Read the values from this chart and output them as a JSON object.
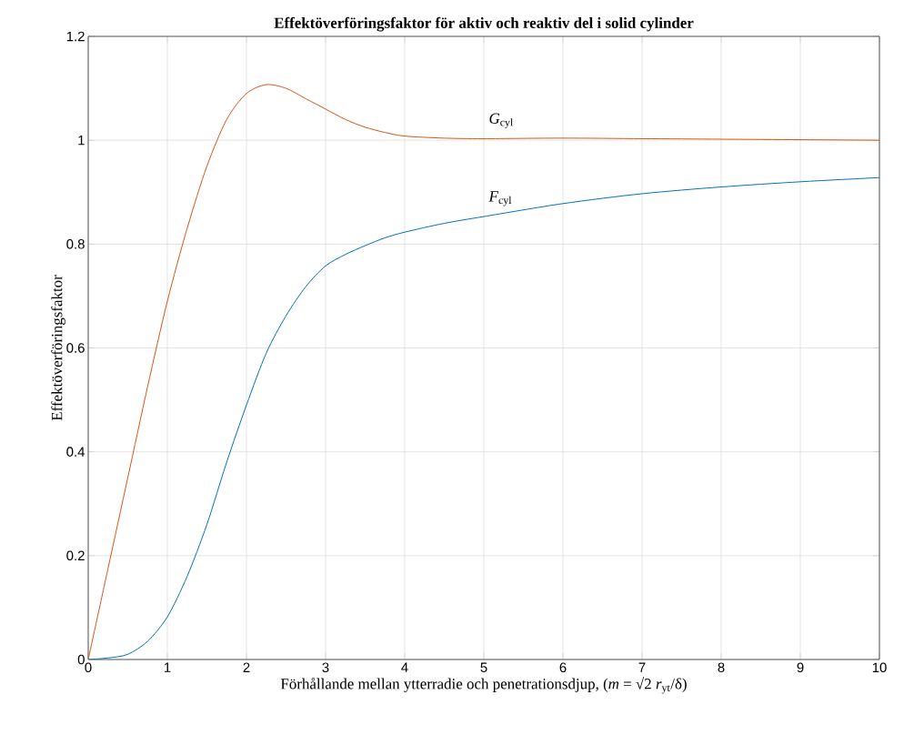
{
  "chart_data": {
    "type": "line",
    "title": "Effektöverföringsfaktor för aktiv och reaktiv del i solid cylinder",
    "xlabel": "Förhållande mellan ytterradie och penetrationsdjup, (*m* = √2 *r*$_{yt}$/δ)",
    "ylabel": "Effektöverföringsfaktor",
    "x": [
      0,
      0.25,
      0.5,
      0.75,
      1,
      1.25,
      1.5,
      1.75,
      2,
      2.25,
      2.5,
      2.75,
      3,
      3.25,
      3.5,
      3.75,
      4,
      4.5,
      5,
      6,
      7,
      8,
      9,
      10
    ],
    "series": [
      {
        "name": "*G*$_{cyl}$",
        "color": "#d95319",
        "values": [
          0,
          0.175,
          0.35,
          0.525,
          0.69,
          0.83,
          0.95,
          1.04,
          1.09,
          1.107,
          1.1,
          1.08,
          1.06,
          1.04,
          1.025,
          1.015,
          1.008,
          1.004,
          1.003,
          1.004,
          1.003,
          1.002,
          1.001,
          1.0
        ]
      },
      {
        "name": "*F*$_{cyl}$",
        "color": "#0072bd",
        "values": [
          0,
          0.003,
          0.01,
          0.035,
          0.082,
          0.16,
          0.26,
          0.38,
          0.49,
          0.59,
          0.662,
          0.718,
          0.758,
          0.78,
          0.797,
          0.812,
          0.823,
          0.84,
          0.853,
          0.878,
          0.897,
          0.91,
          0.92,
          0.928
        ]
      }
    ],
    "xlim": [
      0,
      10
    ],
    "ylim": [
      0,
      1.2
    ],
    "xticks": [
      0,
      1,
      2,
      3,
      4,
      5,
      6,
      7,
      8,
      9,
      10
    ],
    "yticks": [
      0,
      0.2,
      0.4,
      0.6,
      0.8,
      1,
      1.2
    ],
    "grid": true,
    "line_style": "solid"
  }
}
